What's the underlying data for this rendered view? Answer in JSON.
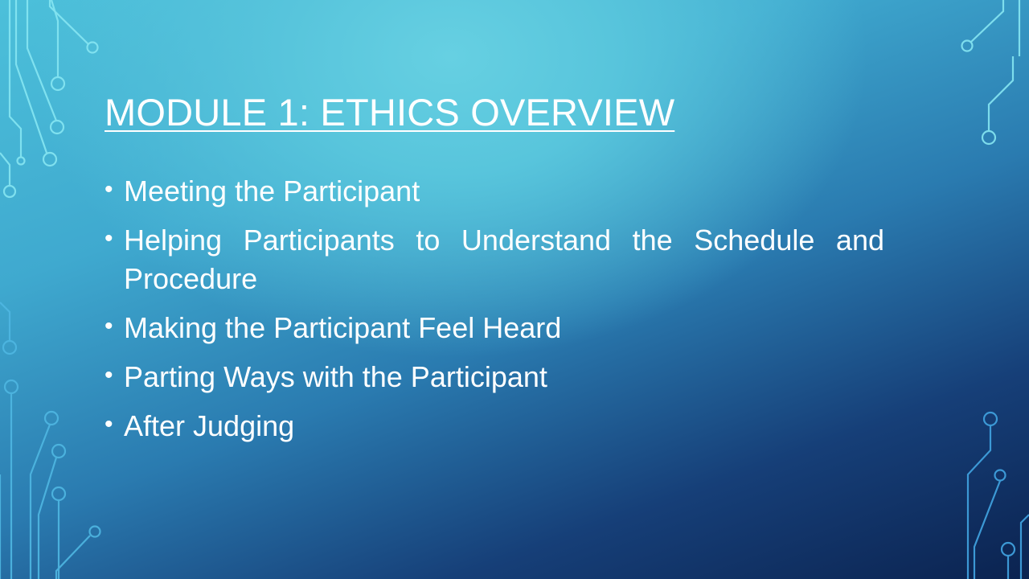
{
  "slide": {
    "title": "MODULE 1: ETHICS OVERVIEW",
    "bullet_symbol": "•",
    "bullets": [
      "Meeting the Participant",
      "Helping Participants to Understand the Schedule and Procedure",
      "Making the Participant Feel Heard",
      "Parting Ways with the Participant",
      "After Judging"
    ]
  },
  "colors": {
    "text": "#ffffff",
    "circuit_light": "#7ee3f0",
    "circuit_dark": "#3a9ad8",
    "background_top": "#66d0e2",
    "background_bottom": "#0b2350"
  },
  "icons": {
    "decoration": "circuit-board-decoration"
  }
}
